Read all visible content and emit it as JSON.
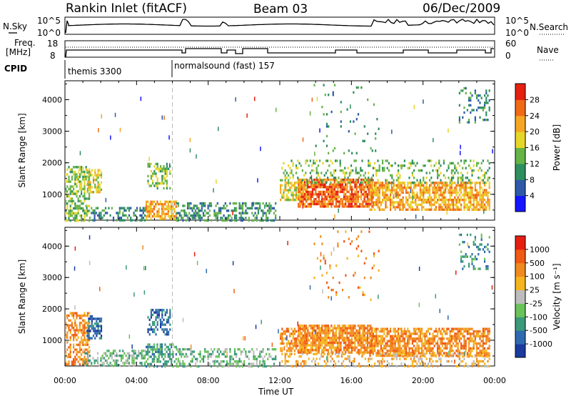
{
  "header": {
    "site": "Rankin Inlet (fitACF)",
    "beam": "Beam 03",
    "date": "06/Dec/2009"
  },
  "top_panels": {
    "nsky_label": "N.Sky",
    "nsky_ticks": [
      "10^5",
      "10^0"
    ],
    "nsearch_label": "N.Search",
    "nsearch_ticks": [
      "10^5",
      "10^0"
    ],
    "freq_label_1": "Freq.",
    "freq_label_2": "[MHz]",
    "freq_ticks": [
      "18",
      "8"
    ],
    "nave_label": "Nave",
    "nave_ticks": [
      "60",
      "0"
    ],
    "cpid_label": "CPID",
    "cpid_entries": [
      {
        "text": "themis 3300",
        "hour": 0
      },
      {
        "text": "normalsound (fast) 157",
        "hour": 6.0
      }
    ]
  },
  "chart_data": [
    {
      "type": "heatmap",
      "name": "power",
      "ylabel": "Slant Range [km]",
      "xlabel": "Time UT",
      "xlim": [
        0,
        24
      ],
      "ylim": [
        180,
        4600
      ],
      "xticks": [
        "00:00",
        "04:00",
        "08:00",
        "12:00",
        "16:00",
        "20:00",
        "00:00"
      ],
      "yticks": [
        1000,
        2000,
        3000,
        4000
      ],
      "colorbar": {
        "label": "Power [dB]",
        "ticks": [
          "4",
          "8",
          "12",
          "16",
          "20",
          "24",
          "28"
        ],
        "colors": [
          "#1515ff",
          "#2e5aa8",
          "#2f8f60",
          "#66b347",
          "#e6d62a",
          "#f5a623",
          "#f06a16",
          "#e62010"
        ]
      },
      "regions": [
        {
          "t0": 0.0,
          "t1": 1.4,
          "r0": 200,
          "r1": 1900,
          "level": 3,
          "density": 0.55
        },
        {
          "t0": 1.2,
          "t1": 2.0,
          "r0": 1100,
          "r1": 1800,
          "level": 4,
          "density": 0.6
        },
        {
          "t0": 1.0,
          "t1": 4.5,
          "r0": 200,
          "r1": 600,
          "level": 2,
          "density": 0.35
        },
        {
          "t0": 4.5,
          "t1": 6.2,
          "r0": 200,
          "r1": 800,
          "level": 5,
          "density": 0.7
        },
        {
          "t0": 4.6,
          "t1": 5.9,
          "r0": 1200,
          "r1": 2000,
          "level": 3,
          "density": 0.45
        },
        {
          "t0": 6.2,
          "t1": 11.8,
          "r0": 200,
          "r1": 750,
          "level": 2,
          "density": 0.45
        },
        {
          "t0": 12.0,
          "t1": 13.5,
          "r0": 800,
          "r1": 1400,
          "level": 4,
          "density": 0.6
        },
        {
          "t0": 13.0,
          "t1": 17.2,
          "r0": 600,
          "r1": 1500,
          "level": 6,
          "density": 0.8
        },
        {
          "t0": 17.0,
          "t1": 23.7,
          "r0": 500,
          "r1": 1400,
          "level": 5,
          "density": 0.7
        },
        {
          "t0": 12.0,
          "t1": 23.7,
          "r0": 1400,
          "r1": 2100,
          "level": 3,
          "density": 0.25
        },
        {
          "t0": 22.0,
          "t1": 23.7,
          "r0": 3300,
          "r1": 4400,
          "level": 2,
          "density": 0.2
        },
        {
          "t0": 13.8,
          "t1": 17.5,
          "r0": 2300,
          "r1": 4500,
          "level": 2,
          "density": 0.05
        }
      ]
    },
    {
      "type": "heatmap",
      "name": "velocity",
      "ylabel": "Slant Range [km]",
      "xlabel": "Time UT",
      "xlim": [
        0,
        24
      ],
      "ylim": [
        180,
        4600
      ],
      "xticks": [
        "00:00",
        "04:00",
        "08:00",
        "12:00",
        "16:00",
        "20:00",
        "00:00"
      ],
      "yticks": [
        1000,
        2000,
        3000,
        4000
      ],
      "colorbar": {
        "label": "Velocity [m s⁻¹]",
        "ticks": [
          "1000",
          "500",
          "100",
          "25",
          "-25",
          "-100",
          "-500",
          "-1000"
        ],
        "colors": [
          "#1a3aa0",
          "#2e6ab0",
          "#3a9a7a",
          "#6ac25a",
          "#bdbdbd",
          "#f5b520",
          "#f08a20",
          "#f05a14",
          "#e61e10"
        ]
      },
      "regions": [
        {
          "t0": 0.0,
          "t1": 1.4,
          "r0": 200,
          "r1": 1900,
          "level": 6,
          "density": 0.55
        },
        {
          "t0": 1.2,
          "t1": 2.0,
          "r0": 1100,
          "r1": 1800,
          "level": 1,
          "density": 0.6
        },
        {
          "t0": 1.0,
          "t1": 4.5,
          "r0": 200,
          "r1": 700,
          "level": 3,
          "density": 0.45
        },
        {
          "t0": 4.5,
          "t1": 6.2,
          "r0": 200,
          "r1": 900,
          "level": 2,
          "density": 0.6
        },
        {
          "t0": 4.6,
          "t1": 5.9,
          "r0": 1200,
          "r1": 2000,
          "level": 1,
          "density": 0.45
        },
        {
          "t0": 6.2,
          "t1": 11.8,
          "r0": 200,
          "r1": 750,
          "level": 3,
          "density": 0.45
        },
        {
          "t0": 12.0,
          "t1": 13.5,
          "r0": 700,
          "r1": 1400,
          "level": 6,
          "density": 0.6
        },
        {
          "t0": 13.0,
          "t1": 17.2,
          "r0": 600,
          "r1": 1500,
          "level": 6,
          "density": 0.8
        },
        {
          "t0": 17.0,
          "t1": 23.7,
          "r0": 500,
          "r1": 1400,
          "level": 6,
          "density": 0.7
        },
        {
          "t0": 12.0,
          "t1": 23.7,
          "r0": 200,
          "r1": 600,
          "level": 5,
          "density": 0.3
        },
        {
          "t0": 22.0,
          "t1": 23.7,
          "r0": 3300,
          "r1": 4400,
          "level": 2,
          "density": 0.2
        },
        {
          "t0": 13.8,
          "t1": 17.5,
          "r0": 2300,
          "r1": 4500,
          "level": 6,
          "density": 0.05
        }
      ]
    }
  ]
}
